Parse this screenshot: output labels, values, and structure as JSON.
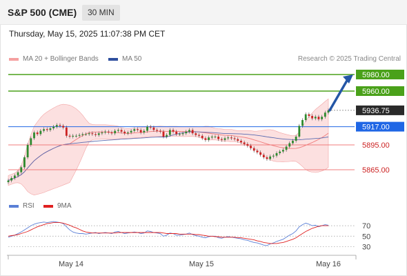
{
  "header": {
    "symbol": "S&P 500 (CME)",
    "interval": "30 MIN",
    "datetime": "Thursday, May 15, 2025 11:07:38 PM CET",
    "credit": "Research © 2025 Trading Central"
  },
  "legend": {
    "bb_label": "MA 20 + Bollinger Bands",
    "ma50_label": "MA 50",
    "rsi_label": "RSI",
    "rsi_ma_label": "9MA"
  },
  "colors": {
    "bb_fill": "#fbd3d3",
    "bb_line": "#f2a4a4",
    "ma20": "#f07b7b",
    "ma50": "#5b6bb0",
    "resistance": "#4aa11a",
    "support": "#f07b7b",
    "pivot": "#1f66e5",
    "current": "#2a2a2a",
    "arrow": "#2456a6",
    "rsi": "#5a7fd6",
    "rsi_ma": "#e02020",
    "bull": "#2e8a2e",
    "bear": "#cc2222"
  },
  "chart_data": {
    "type": "candlestick",
    "xaxis_labels": [
      "May 14",
      "May 15",
      "May 16"
    ],
    "levels": [
      {
        "value": 5980.0,
        "label": "5980.00",
        "kind": "resistance"
      },
      {
        "value": 5960.0,
        "label": "5960.00",
        "kind": "resistance"
      },
      {
        "value": 5936.75,
        "label": "5936.75",
        "kind": "current"
      },
      {
        "value": 5917.0,
        "label": "5917.00",
        "kind": "pivot"
      },
      {
        "value": 5895.0,
        "label": "5895.00",
        "kind": "support"
      },
      {
        "value": 5865.0,
        "label": "5865.00",
        "kind": "support"
      }
    ],
    "arrow": {
      "from": 5936.75,
      "to": 5980.0,
      "direction": "up"
    },
    "ylim": [
      5845,
      5990
    ],
    "close": [
      5852,
      5855,
      5858,
      5862,
      5868,
      5880,
      5895,
      5903,
      5910,
      5908,
      5912,
      5914,
      5913,
      5915,
      5917,
      5919,
      5918,
      5916,
      5906,
      5905,
      5906,
      5906,
      5907,
      5908,
      5908,
      5909,
      5908,
      5907,
      5909,
      5910,
      5911,
      5910,
      5909,
      5912,
      5913,
      5911,
      5909,
      5910,
      5912,
      5914,
      5913,
      5910,
      5912,
      5917,
      5916,
      5913,
      5912,
      5911,
      5905,
      5907,
      5913,
      5911,
      5908,
      5908,
      5909,
      5911,
      5913,
      5909,
      5907,
      5906,
      5903,
      5901,
      5904,
      5905,
      5905,
      5902,
      5901,
      5903,
      5904,
      5903,
      5902,
      5900,
      5898,
      5896,
      5894,
      5891,
      5888,
      5886,
      5883,
      5880,
      5878,
      5881,
      5882,
      5885,
      5887,
      5889,
      5893,
      5897,
      5900,
      5905,
      5918,
      5925,
      5932,
      5930,
      5927,
      5929,
      5926,
      5929,
      5934,
      5936.75
    ],
    "rsi": {
      "levels": [
        70,
        50,
        30
      ],
      "ylim": [
        20,
        90
      ],
      "values": [
        48,
        50,
        52,
        55,
        58,
        62,
        66,
        70,
        73,
        75,
        76,
        77,
        76,
        77,
        78,
        77,
        76,
        74,
        68,
        62,
        58,
        56,
        55,
        55,
        54,
        55,
        56,
        57,
        55,
        56,
        57,
        56,
        55,
        58,
        59,
        57,
        55,
        56,
        57,
        58,
        57,
        55,
        56,
        60,
        59,
        57,
        56,
        55,
        50,
        52,
        56,
        55,
        52,
        52,
        53,
        54,
        56,
        53,
        51,
        50,
        48,
        47,
        49,
        50,
        50,
        47,
        46,
        48,
        49,
        48,
        47,
        46,
        45,
        43,
        42,
        40,
        38,
        37,
        35,
        33,
        32,
        35,
        37,
        40,
        42,
        44,
        48,
        52,
        55,
        60,
        68,
        72,
        75,
        73,
        70,
        71,
        68,
        70,
        72,
        71
      ],
      "ma_values": [
        50,
        51,
        52,
        53,
        55,
        57,
        59,
        62,
        65,
        68,
        70,
        72,
        74,
        75,
        76,
        76,
        76,
        75,
        73,
        71,
        68,
        66,
        63,
        60,
        58,
        57,
        56,
        56,
        56,
        56,
        56,
        56,
        56,
        56,
        57,
        57,
        57,
        57,
        57,
        57,
        57,
        57,
        57,
        57,
        57,
        57,
        57,
        57,
        56,
        55,
        55,
        55,
        55,
        54,
        54,
        54,
        54,
        54,
        53,
        53,
        52,
        51,
        50,
        50,
        49,
        49,
        48,
        48,
        48,
        48,
        48,
        47,
        47,
        46,
        45,
        44,
        43,
        41,
        40,
        38,
        37,
        36,
        36,
        36,
        37,
        38,
        40,
        42,
        44,
        47,
        51,
        55,
        59,
        62,
        65,
        67,
        69,
        70,
        70,
        70
      ]
    }
  }
}
